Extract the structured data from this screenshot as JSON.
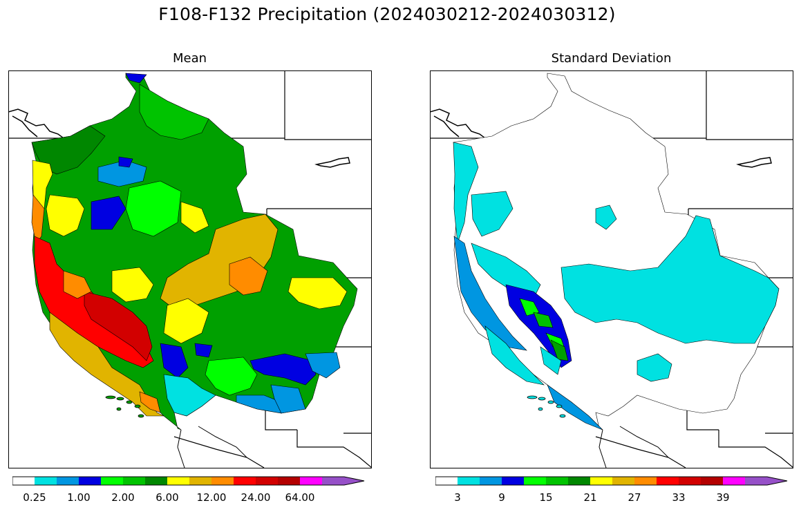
{
  "title": "F108-F132 Precipitation (2024030212-2024030312)",
  "panels": [
    {
      "title": "Mean",
      "colorbar": {
        "colors": [
          "#ffffff",
          "#00e1e1",
          "#0096e1",
          "#0000e1",
          "#00ff00",
          "#00c300",
          "#008700",
          "#ffff00",
          "#e1b400",
          "#ff8c00",
          "#ff0000",
          "#d20000",
          "#b40000",
          "#ff00ff",
          "#9650c8"
        ],
        "tick_labels": [
          "0.25",
          "1.00",
          "2.00",
          "6.00",
          "12.00",
          "24.00",
          "64.00"
        ],
        "extend": "max"
      }
    },
    {
      "title": "Standard Deviation",
      "colorbar": {
        "colors": [
          "#ffffff",
          "#00e1e1",
          "#0096e1",
          "#0000e1",
          "#00ff00",
          "#00c300",
          "#008700",
          "#ffff00",
          "#e1b400",
          "#ff8c00",
          "#ff0000",
          "#d20000",
          "#b40000",
          "#ff00ff",
          "#9650c8"
        ],
        "tick_labels": [
          "3",
          "9",
          "15",
          "21",
          "27",
          "33",
          "39"
        ],
        "extend": "max"
      }
    }
  ]
}
